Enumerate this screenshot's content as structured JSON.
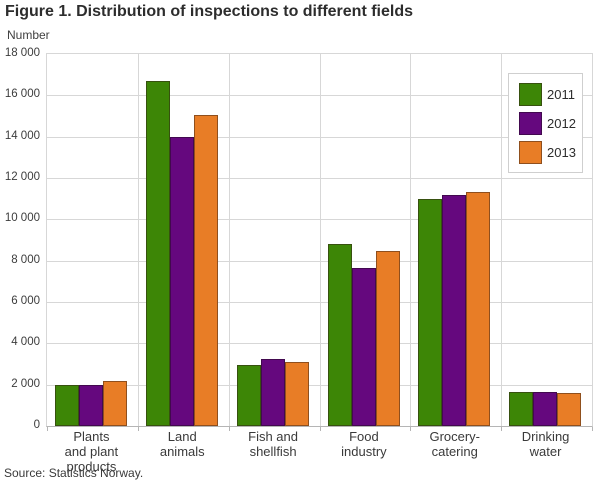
{
  "title": "Figure 1. Distribution of inspections to different fields",
  "source": "Source: Statistics Norway.",
  "chart_data": {
    "type": "bar",
    "title": "Figure 1. Distribution of inspections to different fields",
    "xlabel": "",
    "ylabel": "Number",
    "categories": [
      "Plants\nand plant\nproducts",
      "Land\nanimals",
      "Fish and\nshellfish",
      "Food\nindustry",
      "Grocery-\ncatering",
      "Drinking\nwater"
    ],
    "series": [
      {
        "name": "2011",
        "color": "#3d8606",
        "border_color": "#37510f",
        "values": [
          2000,
          16700,
          2950,
          8800,
          11000,
          1650
        ]
      },
      {
        "name": "2012",
        "color": "#65087e",
        "border_color": "#42094f",
        "values": [
          2000,
          14000,
          3250,
          7650,
          11200,
          1650
        ]
      },
      {
        "name": "2013",
        "color": "#e87d26",
        "border_color": "#8f4f1d",
        "values": [
          2200,
          15050,
          3100,
          8450,
          11300,
          1600
        ]
      }
    ],
    "ylim": [
      0,
      18000
    ],
    "ytick_step": 2000,
    "ytick_labels": [
      "18 000",
      "16 000",
      "14 000",
      "12 000",
      "10 000",
      "8 000",
      "6 000",
      "4 000",
      "2 000",
      "0"
    ],
    "grid": true,
    "legend_position": "top-right",
    "gridline_color": "#d7d7d7",
    "axis_line_color": "#b5b5b5"
  }
}
